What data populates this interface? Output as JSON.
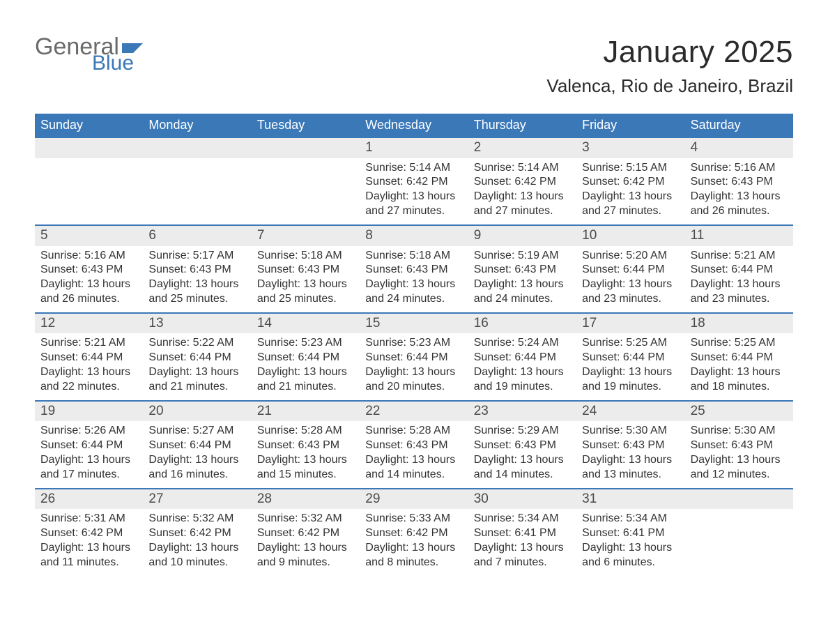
{
  "colors": {
    "header_blue": "#3b78b8",
    "row_divider": "#3b78b8",
    "logo_gray": "#6a6a6a",
    "logo_blue": "#3b78b8",
    "title_color": "#2b2b2b",
    "text_color": "#333333",
    "daynum_bg": "#ececec",
    "page_bg": "#ffffff"
  },
  "logo": {
    "word1": "General",
    "word2": "Blue"
  },
  "title": "January 2025",
  "location": "Valenca, Rio de Janeiro, Brazil",
  "weekdays": [
    "Sunday",
    "Monday",
    "Tuesday",
    "Wednesday",
    "Thursday",
    "Friday",
    "Saturday"
  ],
  "weeks": [
    [
      {
        "empty": true
      },
      {
        "empty": true
      },
      {
        "empty": true
      },
      {
        "num": "1",
        "sunrise": "Sunrise: 5:14 AM",
        "sunset": "Sunset: 6:42 PM",
        "daylight": "Daylight: 13 hours and 27 minutes."
      },
      {
        "num": "2",
        "sunrise": "Sunrise: 5:14 AM",
        "sunset": "Sunset: 6:42 PM",
        "daylight": "Daylight: 13 hours and 27 minutes."
      },
      {
        "num": "3",
        "sunrise": "Sunrise: 5:15 AM",
        "sunset": "Sunset: 6:42 PM",
        "daylight": "Daylight: 13 hours and 27 minutes."
      },
      {
        "num": "4",
        "sunrise": "Sunrise: 5:16 AM",
        "sunset": "Sunset: 6:43 PM",
        "daylight": "Daylight: 13 hours and 26 minutes."
      }
    ],
    [
      {
        "num": "5",
        "sunrise": "Sunrise: 5:16 AM",
        "sunset": "Sunset: 6:43 PM",
        "daylight": "Daylight: 13 hours and 26 minutes."
      },
      {
        "num": "6",
        "sunrise": "Sunrise: 5:17 AM",
        "sunset": "Sunset: 6:43 PM",
        "daylight": "Daylight: 13 hours and 25 minutes."
      },
      {
        "num": "7",
        "sunrise": "Sunrise: 5:18 AM",
        "sunset": "Sunset: 6:43 PM",
        "daylight": "Daylight: 13 hours and 25 minutes."
      },
      {
        "num": "8",
        "sunrise": "Sunrise: 5:18 AM",
        "sunset": "Sunset: 6:43 PM",
        "daylight": "Daylight: 13 hours and 24 minutes."
      },
      {
        "num": "9",
        "sunrise": "Sunrise: 5:19 AM",
        "sunset": "Sunset: 6:43 PM",
        "daylight": "Daylight: 13 hours and 24 minutes."
      },
      {
        "num": "10",
        "sunrise": "Sunrise: 5:20 AM",
        "sunset": "Sunset: 6:44 PM",
        "daylight": "Daylight: 13 hours and 23 minutes."
      },
      {
        "num": "11",
        "sunrise": "Sunrise: 5:21 AM",
        "sunset": "Sunset: 6:44 PM",
        "daylight": "Daylight: 13 hours and 23 minutes."
      }
    ],
    [
      {
        "num": "12",
        "sunrise": "Sunrise: 5:21 AM",
        "sunset": "Sunset: 6:44 PM",
        "daylight": "Daylight: 13 hours and 22 minutes."
      },
      {
        "num": "13",
        "sunrise": "Sunrise: 5:22 AM",
        "sunset": "Sunset: 6:44 PM",
        "daylight": "Daylight: 13 hours and 21 minutes."
      },
      {
        "num": "14",
        "sunrise": "Sunrise: 5:23 AM",
        "sunset": "Sunset: 6:44 PM",
        "daylight": "Daylight: 13 hours and 21 minutes."
      },
      {
        "num": "15",
        "sunrise": "Sunrise: 5:23 AM",
        "sunset": "Sunset: 6:44 PM",
        "daylight": "Daylight: 13 hours and 20 minutes."
      },
      {
        "num": "16",
        "sunrise": "Sunrise: 5:24 AM",
        "sunset": "Sunset: 6:44 PM",
        "daylight": "Daylight: 13 hours and 19 minutes."
      },
      {
        "num": "17",
        "sunrise": "Sunrise: 5:25 AM",
        "sunset": "Sunset: 6:44 PM",
        "daylight": "Daylight: 13 hours and 19 minutes."
      },
      {
        "num": "18",
        "sunrise": "Sunrise: 5:25 AM",
        "sunset": "Sunset: 6:44 PM",
        "daylight": "Daylight: 13 hours and 18 minutes."
      }
    ],
    [
      {
        "num": "19",
        "sunrise": "Sunrise: 5:26 AM",
        "sunset": "Sunset: 6:44 PM",
        "daylight": "Daylight: 13 hours and 17 minutes."
      },
      {
        "num": "20",
        "sunrise": "Sunrise: 5:27 AM",
        "sunset": "Sunset: 6:44 PM",
        "daylight": "Daylight: 13 hours and 16 minutes."
      },
      {
        "num": "21",
        "sunrise": "Sunrise: 5:28 AM",
        "sunset": "Sunset: 6:43 PM",
        "daylight": "Daylight: 13 hours and 15 minutes."
      },
      {
        "num": "22",
        "sunrise": "Sunrise: 5:28 AM",
        "sunset": "Sunset: 6:43 PM",
        "daylight": "Daylight: 13 hours and 14 minutes."
      },
      {
        "num": "23",
        "sunrise": "Sunrise: 5:29 AM",
        "sunset": "Sunset: 6:43 PM",
        "daylight": "Daylight: 13 hours and 14 minutes."
      },
      {
        "num": "24",
        "sunrise": "Sunrise: 5:30 AM",
        "sunset": "Sunset: 6:43 PM",
        "daylight": "Daylight: 13 hours and 13 minutes."
      },
      {
        "num": "25",
        "sunrise": "Sunrise: 5:30 AM",
        "sunset": "Sunset: 6:43 PM",
        "daylight": "Daylight: 13 hours and 12 minutes."
      }
    ],
    [
      {
        "num": "26",
        "sunrise": "Sunrise: 5:31 AM",
        "sunset": "Sunset: 6:42 PM",
        "daylight": "Daylight: 13 hours and 11 minutes."
      },
      {
        "num": "27",
        "sunrise": "Sunrise: 5:32 AM",
        "sunset": "Sunset: 6:42 PM",
        "daylight": "Daylight: 13 hours and 10 minutes."
      },
      {
        "num": "28",
        "sunrise": "Sunrise: 5:32 AM",
        "sunset": "Sunset: 6:42 PM",
        "daylight": "Daylight: 13 hours and 9 minutes."
      },
      {
        "num": "29",
        "sunrise": "Sunrise: 5:33 AM",
        "sunset": "Sunset: 6:42 PM",
        "daylight": "Daylight: 13 hours and 8 minutes."
      },
      {
        "num": "30",
        "sunrise": "Sunrise: 5:34 AM",
        "sunset": "Sunset: 6:41 PM",
        "daylight": "Daylight: 13 hours and 7 minutes."
      },
      {
        "num": "31",
        "sunrise": "Sunrise: 5:34 AM",
        "sunset": "Sunset: 6:41 PM",
        "daylight": "Daylight: 13 hours and 6 minutes."
      },
      {
        "empty": true
      }
    ]
  ]
}
